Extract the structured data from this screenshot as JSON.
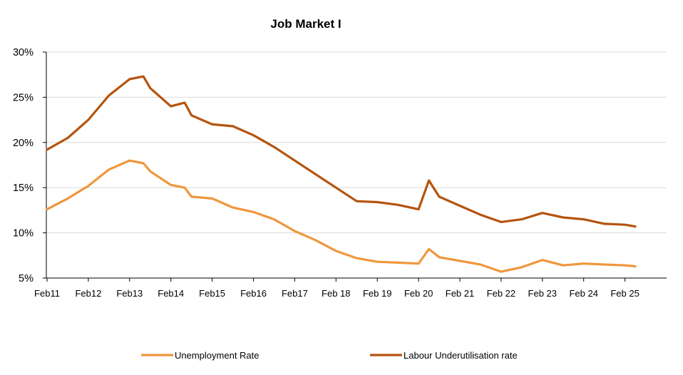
{
  "chart_data": {
    "type": "line",
    "title": "Job Market  I",
    "xlabel": "",
    "ylabel": "",
    "ylim": [
      5,
      30
    ],
    "y_ticks": [
      "5%",
      "10%",
      "15%",
      "20%",
      "25%",
      "30%"
    ],
    "x_ticks": [
      "Feb11",
      "Feb12",
      "Feb13",
      "Feb14",
      "Feb15",
      "Feb16",
      "Feb17",
      "Feb 18",
      "Feb 19",
      "Feb 20",
      "Feb 21",
      "Feb 22",
      "Feb 23",
      "Feb 24",
      "Feb 25"
    ],
    "grid": "horizontal",
    "legend_position": "bottom",
    "x": [
      "2011-02",
      "2011-08",
      "2012-02",
      "2012-08",
      "2013-02",
      "2013-06",
      "2013-08",
      "2014-02",
      "2014-06",
      "2014-08",
      "2015-02",
      "2015-08",
      "2016-02",
      "2016-08",
      "2017-02",
      "2017-08",
      "2018-02",
      "2018-08",
      "2019-02",
      "2019-08",
      "2020-02",
      "2020-05",
      "2020-08",
      "2021-02",
      "2021-08",
      "2022-02",
      "2022-08",
      "2023-02",
      "2023-08",
      "2024-02",
      "2024-08",
      "2025-02",
      "2025-05"
    ],
    "series": [
      {
        "name": "Unemployment Rate",
        "color": "#F0963C",
        "values": [
          12.6,
          13.8,
          15.2,
          17.0,
          18.0,
          17.7,
          16.8,
          15.3,
          15.0,
          14.0,
          13.8,
          12.8,
          12.3,
          11.5,
          10.2,
          9.2,
          8.0,
          7.2,
          6.8,
          6.7,
          6.6,
          8.2,
          7.3,
          6.9,
          6.5,
          5.7,
          6.2,
          7.0,
          6.4,
          6.6,
          6.5,
          6.4,
          6.3
        ]
      },
      {
        "name": "Labour Underutilisation rate",
        "color": "#B5540E",
        "values": [
          19.2,
          20.5,
          22.5,
          25.2,
          27.0,
          27.3,
          26.0,
          24.0,
          24.4,
          23.0,
          22.0,
          21.8,
          20.8,
          19.5,
          18.0,
          16.5,
          15.0,
          13.5,
          13.4,
          13.1,
          12.6,
          15.8,
          14.0,
          13.0,
          12.0,
          11.2,
          11.5,
          12.2,
          11.7,
          11.5,
          11.0,
          10.9,
          10.7
        ]
      }
    ]
  }
}
